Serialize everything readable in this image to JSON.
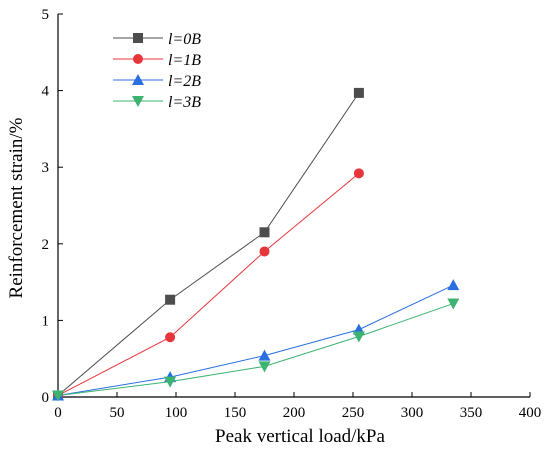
{
  "chart_data": {
    "type": "line",
    "title": "",
    "xlabel": "Peak vertical load/kPa",
    "ylabel": "Reinforcement strain/%",
    "xlim": [
      0,
      400
    ],
    "ylim": [
      0,
      5
    ],
    "xticks": [
      0,
      50,
      100,
      150,
      200,
      250,
      300,
      350,
      400
    ],
    "yticks": [
      0,
      1,
      2,
      3,
      4,
      5
    ],
    "grid": false,
    "legend_position": "top-left",
    "series": [
      {
        "name": "l=0B",
        "marker": "square",
        "color": "#4d4d4d",
        "x": [
          0,
          95,
          175,
          255
        ],
        "y": [
          0.02,
          1.27,
          2.15,
          3.97
        ]
      },
      {
        "name": "l=1B",
        "marker": "circle",
        "color": "#e8343b",
        "x": [
          0,
          95,
          175,
          255
        ],
        "y": [
          0.02,
          0.78,
          1.9,
          2.92
        ]
      },
      {
        "name": "l=2B",
        "marker": "triangle-up",
        "color": "#2a6fe0",
        "x": [
          0,
          95,
          175,
          255,
          335
        ],
        "y": [
          0.02,
          0.26,
          0.54,
          0.88,
          1.46
        ]
      },
      {
        "name": "l=3B",
        "marker": "triangle-down",
        "color": "#3cb371",
        "x": [
          0,
          95,
          175,
          255,
          335
        ],
        "y": [
          0.02,
          0.2,
          0.4,
          0.79,
          1.22
        ]
      }
    ]
  }
}
